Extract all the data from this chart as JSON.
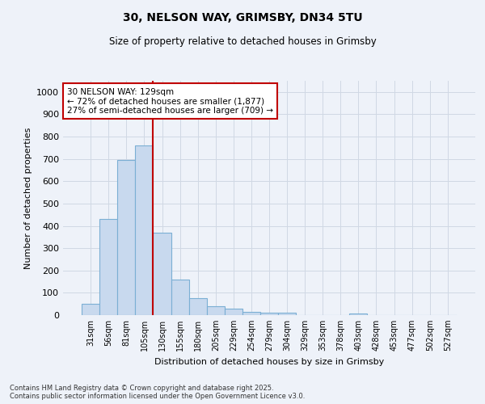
{
  "title": "30, NELSON WAY, GRIMSBY, DN34 5TU",
  "subtitle": "Size of property relative to detached houses in Grimsby",
  "xlabel": "Distribution of detached houses by size in Grimsby",
  "ylabel": "Number of detached properties",
  "categories": [
    "31sqm",
    "56sqm",
    "81sqm",
    "105sqm",
    "130sqm",
    "155sqm",
    "180sqm",
    "205sqm",
    "229sqm",
    "254sqm",
    "279sqm",
    "304sqm",
    "329sqm",
    "353sqm",
    "378sqm",
    "403sqm",
    "428sqm",
    "453sqm",
    "477sqm",
    "502sqm",
    "527sqm"
  ],
  "values": [
    50,
    430,
    695,
    760,
    370,
    160,
    75,
    40,
    30,
    15,
    11,
    10,
    0,
    0,
    0,
    8,
    0,
    0,
    0,
    0,
    0
  ],
  "bar_color": "#c8d9ee",
  "bar_edge_color": "#7bafd4",
  "grid_color": "#d0d8e4",
  "vline_color": "#c00000",
  "annotation_line1": "30 NELSON WAY: 129sqm",
  "annotation_line2": "← 72% of detached houses are smaller (1,877)",
  "annotation_line3": "27% of semi-detached houses are larger (709) →",
  "annotation_box_color": "#ffffff",
  "annotation_box_edge_color": "#c00000",
  "ylim": [
    0,
    1050
  ],
  "yticks": [
    0,
    100,
    200,
    300,
    400,
    500,
    600,
    700,
    800,
    900,
    1000
  ],
  "footer_line1": "Contains HM Land Registry data © Crown copyright and database right 2025.",
  "footer_line2": "Contains public sector information licensed under the Open Government Licence v3.0.",
  "bg_color": "#eef2f9"
}
